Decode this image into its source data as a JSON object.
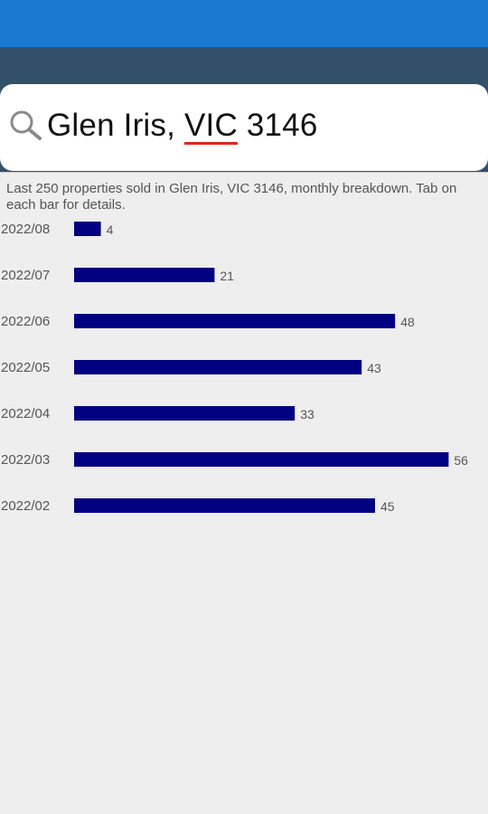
{
  "search": {
    "value_prefix": "Glen Iris, ",
    "value_flagged": "VIC",
    "value_suffix": " 3146",
    "icon": "search-icon"
  },
  "description": "Last 250 properties sold in Glen Iris, VIC 3146, monthly breakdown. Tab on each bar for details.",
  "colors": {
    "status_bar": "#1b78d0",
    "app_bar": "#33506b",
    "bar": "#000080"
  },
  "chart_data": {
    "type": "bar",
    "orientation": "horizontal",
    "categories": [
      "2022/08",
      "2022/07",
      "2022/06",
      "2022/05",
      "2022/04",
      "2022/03",
      "2022/02"
    ],
    "values": [
      4,
      21,
      48,
      43,
      33,
      56,
      45
    ],
    "title": "",
    "xlabel": "",
    "ylabel": "",
    "grid": false,
    "data_labels": true
  }
}
